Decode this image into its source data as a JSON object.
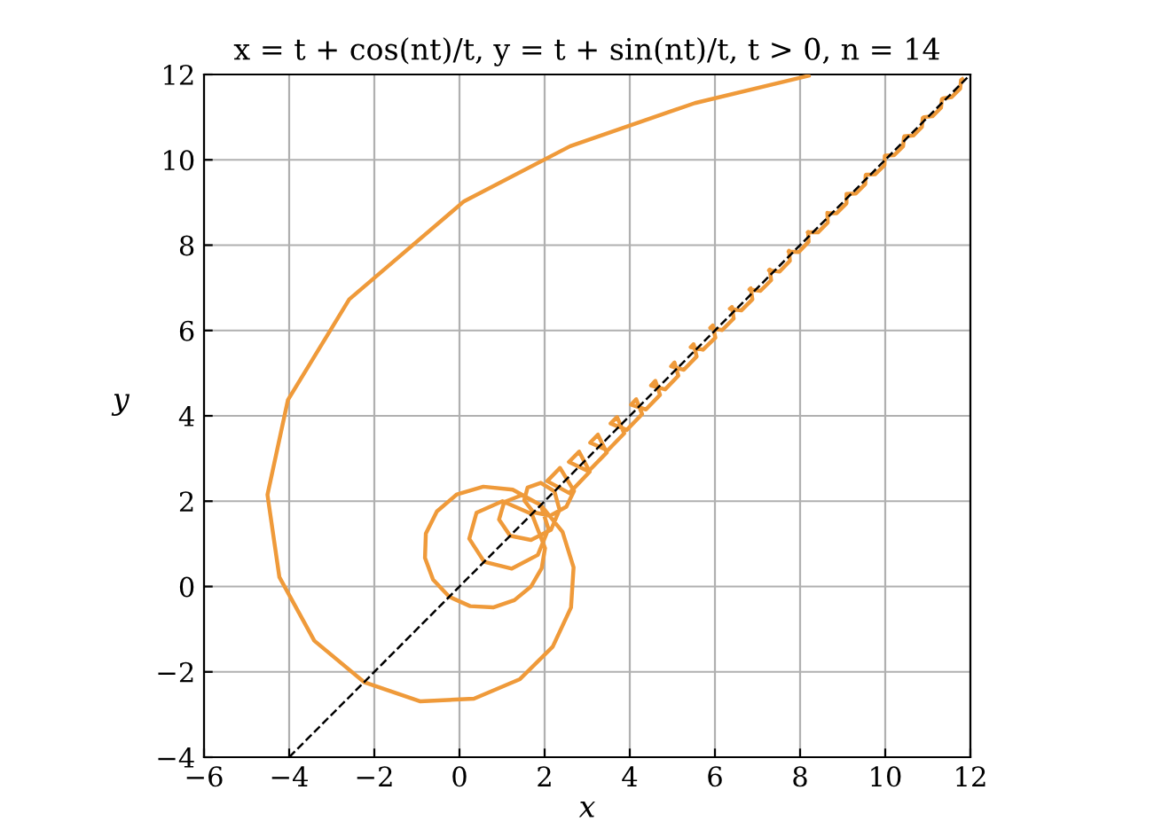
{
  "chart_data": {
    "type": "line",
    "title": "x = t + cos(nt)/t, y = t + sin(nt)/t, t > 0, n = 14",
    "xlabel": "x",
    "ylabel": "y",
    "xlim": [
      -6,
      12
    ],
    "ylim": [
      -4,
      12
    ],
    "xticks": [
      {
        "value": -6,
        "label": "−6"
      },
      {
        "value": -4,
        "label": "−4"
      },
      {
        "value": -2,
        "label": "−2"
      },
      0,
      2,
      4,
      6,
      8,
      10,
      12
    ],
    "yticks": [
      {
        "value": -4,
        "label": "−4"
      },
      {
        "value": -2,
        "label": "−2"
      },
      0,
      2,
      4,
      6,
      8,
      10,
      12
    ],
    "grid": true,
    "marker": "none",
    "series": [
      {
        "color": "#ef9a3a",
        "line_style": "solid",
        "x": [
          8.2,
          5.53,
          2.6,
          0.11,
          -2.59,
          -4.03,
          -4.51,
          -4.23,
          -3.41,
          -2.24,
          -0.93,
          0.34,
          1.42,
          2.19,
          2.62,
          2.68,
          2.42,
          1.91,
          1.25,
          0.56,
          -0.06,
          -0.53,
          -0.79,
          -0.81,
          -0.62,
          -0.24,
          0.25,
          0.79,
          1.29,
          1.68,
          1.93,
          2.01,
          1.7,
          1.01,
          0.4,
          0.23,
          0.58,
          1.23,
          1.84,
          2.09,
          1.91,
          1.46,
          1.05,
          0.93,
          1.19,
          1.68,
          2.15,
          2.35,
          2.23,
          1.91,
          1.6,
          1.52,
          1.74,
          2.13,
          2.51,
          2.69,
          2.36,
          2.06,
          2.58,
          3.06,
          2.81,
          2.57,
          3.03,
          3.46,
          3.25,
          3.07,
          3.48,
          3.87,
          3.7,
          3.55,
          3.93,
          4.29,
          4.15,
          4.03,
          4.38,
          4.71,
          4.6,
          4.5,
          4.83,
          5.14,
          5.05,
          4.97,
          5.27,
          5.57,
          5.5,
          5.43,
          5.72,
          6.01,
          5.95,
          5.89,
          6.17,
          6.44,
          6.4,
          6.35,
          6.62,
          6.88,
          6.84,
          6.81,
          7.07,
          7.32,
          7.29,
          7.27,
          7.52,
          7.76,
          7.74,
          7.73,
          7.97,
          8.2,
          8.19,
          8.18,
          8.42,
          8.65,
          8.64,
          8.64,
          8.86,
          9.09,
          9.09,
          9.09,
          9.31,
          9.53,
          9.54,
          9.55,
          9.76,
          9.98,
          9.99,
          10.0,
          10.21,
          10.42,
          10.44,
          10.45,
          10.66,
          10.86,
          10.88,
          10.91,
          11.11,
          11.31,
          11.33,
          11.36,
          11.56,
          11.76,
          11.78,
          11.81
        ],
        "values": [
          11.97,
          11.33,
          10.32,
          9.03,
          6.73,
          4.37,
          2.15,
          0.22,
          -1.27,
          -2.24,
          -2.69,
          -2.63,
          -2.17,
          -1.41,
          -0.49,
          0.45,
          1.28,
          1.91,
          2.27,
          2.34,
          2.16,
          1.76,
          1.24,
          0.67,
          0.16,
          -0.24,
          -0.46,
          -0.49,
          -0.32,
          0.0,
          0.43,
          0.9,
          1.7,
          2.0,
          1.73,
          1.12,
          0.58,
          0.42,
          0.74,
          1.35,
          1.91,
          2.14,
          1.98,
          1.57,
          1.19,
          1.09,
          1.33,
          1.8,
          2.23,
          2.43,
          2.32,
          2.02,
          1.74,
          1.66,
          1.87,
          2.24,
          2.78,
          2.47,
          2.19,
          2.69,
          3.16,
          2.92,
          2.7,
          3.14,
          3.56,
          3.37,
          3.19,
          3.59,
          3.97,
          3.82,
          3.67,
          4.04,
          4.39,
          4.26,
          4.15,
          4.49,
          4.82,
          4.71,
          4.62,
          4.94,
          5.25,
          5.16,
          5.08,
          5.39,
          5.68,
          5.61,
          5.55,
          5.83,
          6.12,
          6.06,
          6.01,
          6.28,
          6.55,
          6.51,
          6.47,
          6.73,
          6.99,
          6.96,
          6.93,
          7.18,
          7.43,
          7.41,
          7.38,
          7.63,
          7.87,
          7.85,
          7.84,
          8.08,
          8.31,
          8.3,
          8.3,
          8.53,
          8.76,
          8.75,
          8.75,
          8.98,
          9.2,
          9.2,
          9.21,
          9.43,
          9.64,
          9.65,
          9.66,
          9.87,
          10.09,
          10.1,
          10.11,
          10.32,
          10.53,
          10.55,
          10.57,
          10.77,
          10.98,
          11.0,
          11.02,
          11.22,
          11.42,
          11.44,
          11.47,
          11.67,
          11.87,
          11.89
        ]
      },
      {
        "color": "#000000",
        "line_style": "dashed",
        "x": [
          -4,
          12
        ],
        "values": [
          -4,
          12
        ]
      }
    ]
  }
}
